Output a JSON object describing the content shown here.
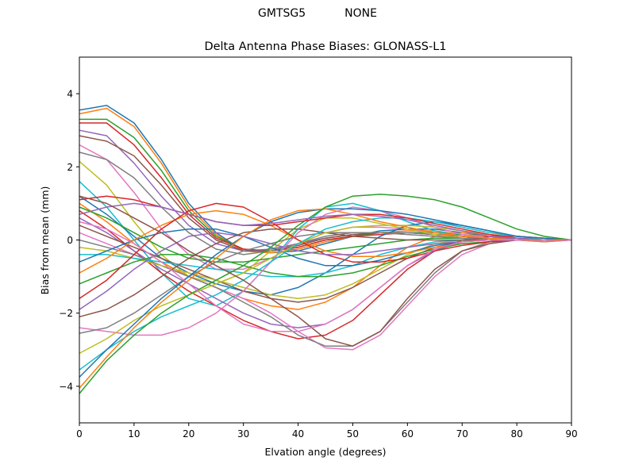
{
  "figure": {
    "suptitle": "GMTSG5           NONE"
  },
  "chart_data": {
    "type": "line",
    "title": "Delta Antenna Phase Biases: GLONASS-L1",
    "xlabel": "Elvation angle (degrees)",
    "ylabel": "Bias from mean (mm)",
    "xlim": [
      0,
      90
    ],
    "ylim": [
      -5,
      5
    ],
    "xticks": [
      0,
      10,
      20,
      30,
      40,
      50,
      60,
      70,
      80,
      90
    ],
    "yticks": [
      -4,
      -2,
      0,
      2,
      4
    ],
    "x": [
      0,
      5,
      10,
      15,
      20,
      25,
      30,
      35,
      40,
      45,
      50,
      55,
      60,
      65,
      70,
      75,
      80,
      85,
      90
    ],
    "grid": false,
    "legend": "none",
    "colors": [
      "#1f77b4",
      "#ff7f0e",
      "#2ca02c",
      "#d62728",
      "#9467bd",
      "#8c564b",
      "#e377c2",
      "#7f7f7f",
      "#bcbd22",
      "#17becf"
    ],
    "series": [
      {
        "values": [
          3.55,
          3.68,
          3.2,
          2.2,
          1.0,
          0.2,
          -0.3,
          -0.35,
          -0.3,
          -0.1,
          0.1,
          0.25,
          0.3,
          0.3,
          0.2,
          0.1,
          0.0,
          -0.05,
          0
        ]
      },
      {
        "values": [
          3.45,
          3.6,
          3.1,
          2.1,
          0.9,
          0.15,
          -0.3,
          -0.35,
          -0.25,
          -0.05,
          0.1,
          0.2,
          0.25,
          0.25,
          0.15,
          0.1,
          0.0,
          -0.05,
          0
        ]
      },
      {
        "values": [
          3.3,
          3.3,
          2.8,
          1.9,
          0.8,
          0.1,
          -0.25,
          -0.3,
          -0.2,
          0.0,
          0.1,
          0.2,
          0.2,
          0.2,
          0.15,
          0.05,
          0.0,
          0.0,
          0
        ]
      },
      {
        "values": [
          3.2,
          3.2,
          2.6,
          1.7,
          0.7,
          0.05,
          -0.25,
          -0.3,
          -0.2,
          0.0,
          0.1,
          0.15,
          0.2,
          0.15,
          0.1,
          0.05,
          0.0,
          0.0,
          0
        ]
      },
      {
        "values": [
          3.0,
          2.85,
          2.1,
          1.2,
          0.4,
          -0.1,
          -0.3,
          -0.25,
          -0.1,
          0.05,
          0.15,
          0.2,
          0.2,
          0.15,
          0.1,
          0.05,
          0.0,
          0.0,
          0
        ]
      },
      {
        "values": [
          2.85,
          2.7,
          2.3,
          1.5,
          0.6,
          0.0,
          -0.3,
          -0.3,
          -0.15,
          0.05,
          0.15,
          0.2,
          0.2,
          0.15,
          0.1,
          0.05,
          0.0,
          0.0,
          0
        ]
      },
      {
        "values": [
          2.6,
          2.2,
          1.3,
          0.3,
          -0.4,
          -0.8,
          -0.8,
          -0.5,
          -0.1,
          0.2,
          0.35,
          0.35,
          0.3,
          0.2,
          0.1,
          0.05,
          0.0,
          0.0,
          0
        ]
      },
      {
        "values": [
          2.4,
          2.2,
          1.7,
          0.9,
          0.2,
          -0.25,
          -0.4,
          -0.3,
          -0.1,
          0.1,
          0.2,
          0.2,
          0.2,
          0.15,
          0.1,
          0.05,
          0.0,
          0.0,
          0
        ]
      },
      {
        "values": [
          2.15,
          1.5,
          0.5,
          -0.4,
          -1.0,
          -1.2,
          -0.9,
          -0.3,
          0.3,
          0.6,
          0.6,
          0.45,
          0.3,
          0.15,
          0.05,
          0.0,
          0.0,
          0.0,
          0
        ]
      },
      {
        "values": [
          1.6,
          0.9,
          0.0,
          -0.9,
          -1.6,
          -1.8,
          -1.4,
          -0.6,
          0.3,
          0.9,
          1.0,
          0.8,
          0.5,
          0.25,
          0.1,
          0.05,
          0.0,
          0.0,
          0
        ]
      },
      {
        "values": [
          1.2,
          0.7,
          0.1,
          -0.5,
          -0.9,
          -1.2,
          -1.4,
          -1.5,
          -1.3,
          -0.9,
          -0.4,
          0.1,
          0.4,
          0.5,
          0.4,
          0.25,
          0.1,
          0.05,
          0
        ]
      },
      {
        "values": [
          1.0,
          0.5,
          -0.1,
          -0.6,
          -1.0,
          -1.3,
          -1.6,
          -1.8,
          -1.9,
          -1.7,
          -1.3,
          -0.7,
          -0.2,
          0.1,
          0.2,
          0.15,
          0.1,
          0.05,
          0
        ]
      },
      {
        "values": [
          0.9,
          0.6,
          0.2,
          -0.2,
          -0.5,
          -0.6,
          -0.6,
          -0.5,
          -0.4,
          -0.3,
          -0.2,
          -0.1,
          0.0,
          0.05,
          0.05,
          0.05,
          0.0,
          0.0,
          0
        ]
      },
      {
        "values": [
          0.8,
          0.3,
          -0.3,
          -0.9,
          -1.4,
          -1.8,
          -2.2,
          -2.5,
          -2.7,
          -2.6,
          -2.2,
          -1.5,
          -0.8,
          -0.3,
          0.0,
          0.1,
          0.1,
          0.05,
          0
        ]
      },
      {
        "values": [
          0.6,
          0.2,
          -0.3,
          -0.8,
          -1.2,
          -1.6,
          -2.0,
          -2.3,
          -2.4,
          -2.3,
          -1.9,
          -1.3,
          -0.7,
          -0.3,
          -0.05,
          0.05,
          0.05,
          0.0,
          0
        ]
      },
      {
        "values": [
          0.4,
          0.1,
          -0.2,
          -0.5,
          -0.8,
          -1.1,
          -1.4,
          -1.6,
          -1.7,
          -1.6,
          -1.3,
          -0.9,
          -0.5,
          -0.2,
          -0.05,
          0.0,
          0.0,
          0.0,
          0
        ]
      },
      {
        "values": [
          0.2,
          -0.1,
          -0.4,
          -0.7,
          -1.0,
          -1.3,
          -1.6,
          -2.0,
          -2.5,
          -2.95,
          -3.0,
          -2.6,
          -1.8,
          -1.0,
          -0.4,
          -0.1,
          0.0,
          0.0,
          0
        ]
      },
      {
        "values": [
          0.0,
          -0.2,
          -0.4,
          -0.7,
          -1.0,
          -1.3,
          -1.7,
          -2.1,
          -2.6,
          -2.9,
          -2.9,
          -2.5,
          -1.7,
          -0.9,
          -0.3,
          -0.05,
          0.0,
          0.0,
          0
        ]
      },
      {
        "values": [
          -0.2,
          -0.3,
          -0.5,
          -0.7,
          -0.9,
          -1.1,
          -1.3,
          -1.5,
          -1.6,
          -1.5,
          -1.2,
          -0.8,
          -0.4,
          -0.1,
          0.0,
          0.0,
          0.0,
          0.0,
          0
        ]
      },
      {
        "values": [
          -0.4,
          -0.4,
          -0.5,
          -0.6,
          -0.7,
          -0.8,
          -0.9,
          -1.0,
          -1.0,
          -0.9,
          -0.7,
          -0.4,
          -0.2,
          -0.05,
          0.0,
          0.0,
          0.0,
          0.0,
          0
        ]
      },
      {
        "values": [
          -0.6,
          -0.3,
          0.0,
          0.2,
          0.3,
          0.3,
          0.1,
          -0.2,
          -0.5,
          -0.7,
          -0.7,
          -0.55,
          -0.35,
          -0.15,
          -0.05,
          0.0,
          0.0,
          0.0,
          0
        ]
      },
      {
        "values": [
          -0.9,
          -0.5,
          0.0,
          0.4,
          0.7,
          0.8,
          0.7,
          0.4,
          0.0,
          -0.3,
          -0.45,
          -0.45,
          -0.35,
          -0.2,
          -0.1,
          -0.05,
          0.0,
          0.0,
          0
        ]
      },
      {
        "values": [
          -1.2,
          -0.9,
          -0.6,
          -0.4,
          -0.4,
          -0.5,
          -0.7,
          -0.9,
          -1.0,
          -1.0,
          -0.9,
          -0.7,
          -0.45,
          -0.25,
          -0.1,
          -0.05,
          0.0,
          0.0,
          0
        ]
      },
      {
        "values": [
          -1.6,
          -1.1,
          -0.4,
          0.3,
          0.8,
          1.0,
          0.9,
          0.5,
          0.0,
          -0.4,
          -0.6,
          -0.6,
          -0.5,
          -0.3,
          -0.15,
          -0.05,
          0.0,
          0.0,
          0
        ]
      },
      {
        "values": [
          -1.9,
          -1.4,
          -0.8,
          -0.3,
          0.1,
          0.2,
          0.1,
          -0.1,
          -0.3,
          -0.4,
          -0.4,
          -0.3,
          -0.2,
          -0.1,
          -0.05,
          0.0,
          0.0,
          0.0,
          0
        ]
      },
      {
        "values": [
          -2.1,
          -1.9,
          -1.5,
          -1.0,
          -0.5,
          -0.1,
          0.2,
          0.3,
          0.3,
          0.2,
          0.1,
          0.05,
          0.0,
          0.0,
          0.0,
          0.0,
          0.0,
          0.0,
          0
        ]
      },
      {
        "values": [
          -2.4,
          -2.5,
          -2.6,
          -2.6,
          -2.4,
          -2.0,
          -1.4,
          -0.6,
          0.2,
          0.7,
          0.9,
          0.8,
          0.6,
          0.35,
          0.15,
          0.05,
          0.0,
          0.0,
          0
        ]
      },
      {
        "values": [
          -2.55,
          -2.4,
          -2.0,
          -1.5,
          -1.0,
          -0.6,
          -0.3,
          -0.1,
          0.1,
          0.2,
          0.2,
          0.2,
          0.15,
          0.1,
          0.05,
          0.0,
          0.0,
          0.0,
          0
        ]
      },
      {
        "values": [
          -3.1,
          -2.7,
          -2.2,
          -1.8,
          -1.5,
          -1.2,
          -0.9,
          -0.5,
          -0.1,
          0.2,
          0.35,
          0.4,
          0.4,
          0.35,
          0.25,
          0.15,
          0.05,
          0.0,
          0
        ]
      },
      {
        "values": [
          -3.55,
          -3.0,
          -2.5,
          -2.1,
          -1.8,
          -1.5,
          -1.1,
          -0.6,
          -0.1,
          0.3,
          0.5,
          0.6,
          0.6,
          0.5,
          0.35,
          0.2,
          0.1,
          0.0,
          0
        ]
      },
      {
        "values": [
          -3.75,
          -3.0,
          -2.3,
          -1.6,
          -1.0,
          -0.4,
          0.1,
          0.5,
          0.75,
          0.85,
          0.85,
          0.8,
          0.7,
          0.55,
          0.4,
          0.25,
          0.1,
          0.05,
          0
        ]
      },
      {
        "values": [
          -4.05,
          -3.2,
          -2.4,
          -1.7,
          -1.1,
          -0.5,
          0.1,
          0.55,
          0.8,
          0.85,
          0.7,
          0.5,
          0.35,
          0.2,
          0.1,
          0.05,
          0.0,
          0.0,
          0
        ]
      },
      {
        "values": [
          -4.2,
          -3.3,
          -2.6,
          -2.0,
          -1.5,
          -1.1,
          -0.7,
          -0.2,
          0.4,
          0.9,
          1.2,
          1.25,
          1.2,
          1.1,
          0.9,
          0.6,
          0.3,
          0.1,
          0
        ]
      },
      {
        "values": [
          1.1,
          1.2,
          1.1,
          0.9,
          0.7,
          0.5,
          0.4,
          0.4,
          0.5,
          0.6,
          0.7,
          0.7,
          0.6,
          0.45,
          0.3,
          0.15,
          0.05,
          0.0,
          0
        ]
      },
      {
        "values": [
          0.7,
          0.9,
          1.0,
          0.9,
          0.7,
          0.5,
          0.4,
          0.45,
          0.55,
          0.65,
          0.7,
          0.65,
          0.55,
          0.4,
          0.25,
          0.1,
          0.05,
          0.0,
          0
        ]
      },
      {
        "values": [
          1.2,
          1.0,
          0.6,
          0.2,
          -0.3,
          -0.7,
          -1.1,
          -1.6,
          -2.1,
          -2.7,
          -2.9,
          -2.5,
          -1.6,
          -0.8,
          -0.3,
          -0.1,
          0.0,
          0.0,
          0
        ]
      },
      {
        "values": [
          0.5,
          0.3,
          -0.1,
          -0.6,
          -1.2,
          -1.8,
          -2.3,
          -2.5,
          -2.5,
          -2.3,
          -1.9,
          -1.3,
          -0.7,
          -0.25,
          -0.05,
          0.0,
          0.0,
          0.0,
          0
        ]
      }
    ]
  }
}
